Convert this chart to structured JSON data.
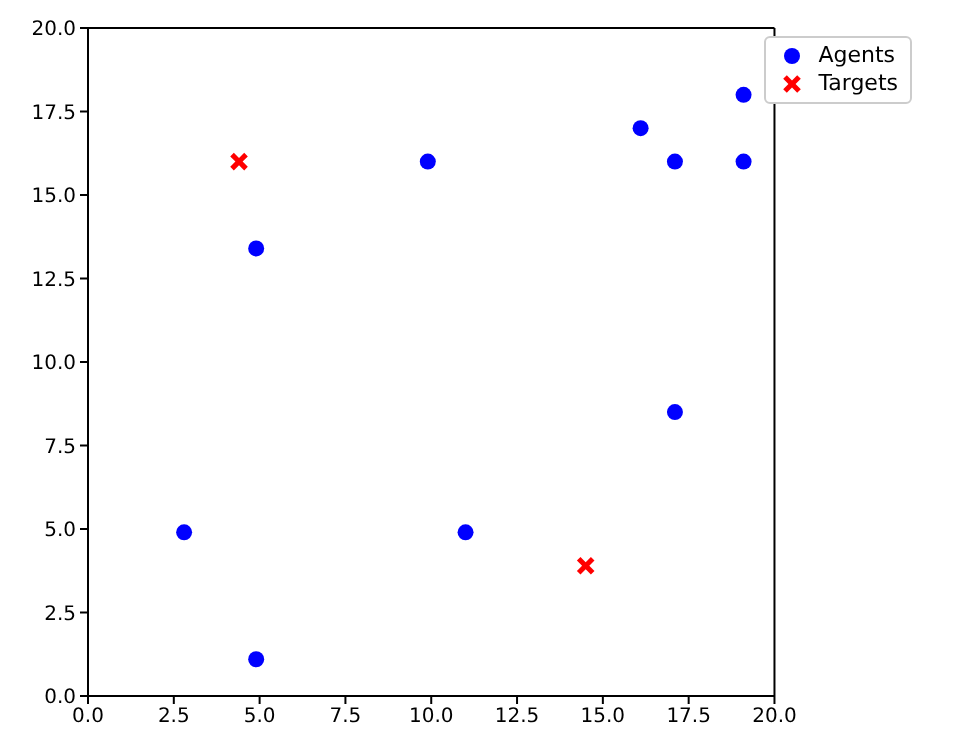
{
  "chart_data": {
    "type": "scatter",
    "legend": "top right",
    "grid": false,
    "xlim": [
      0,
      20
    ],
    "ylim": [
      0,
      20
    ],
    "xticks": [
      {
        "value": 0,
        "label": "0.0"
      },
      {
        "value": 2.5,
        "label": "2.5"
      },
      {
        "value": 5,
        "label": "5.0"
      },
      {
        "value": 7.5,
        "label": "7.5"
      },
      {
        "value": 10,
        "label": "10.0"
      },
      {
        "value": 12.5,
        "label": "12.5"
      },
      {
        "value": 15,
        "label": "15.0"
      },
      {
        "value": 17.5,
        "label": "17.5"
      },
      {
        "value": 20,
        "label": "20.0"
      }
    ],
    "yticks": [
      {
        "value": 0,
        "label": "0.0"
      },
      {
        "value": 2.5,
        "label": "2.5"
      },
      {
        "value": 5,
        "label": "5.0"
      },
      {
        "value": 7.5,
        "label": "7.5"
      },
      {
        "value": 10,
        "label": "10.0"
      },
      {
        "value": 12.5,
        "label": "12.5"
      },
      {
        "value": 15,
        "label": "15.0"
      },
      {
        "value": 17.5,
        "label": "17.5"
      },
      {
        "value": 20,
        "label": "20.0"
      }
    ],
    "series": [
      {
        "name": "Agents",
        "color": "#0000ff",
        "marker": "circle",
        "x": [
          2.8,
          4.9,
          4.9,
          9.9,
          11,
          16.1,
          17.1,
          17.1,
          19.1,
          19.1
        ],
        "values": [
          4.9,
          13.4,
          1.1,
          16,
          4.9,
          17,
          16,
          8.5,
          18,
          16
        ]
      },
      {
        "name": "Targets",
        "color": "#ff0000",
        "marker": "cross",
        "x": [
          4.4,
          14.5
        ],
        "values": [
          16,
          3.9
        ]
      }
    ]
  }
}
